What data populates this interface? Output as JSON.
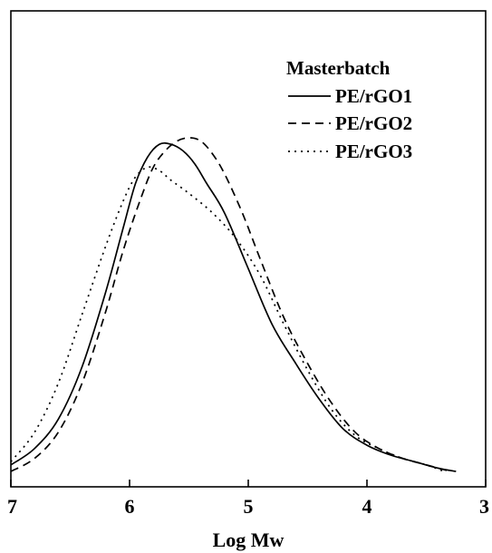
{
  "chart_data": {
    "type": "line",
    "title": "",
    "xlabel": "Log Mw",
    "ylabel": "",
    "x_reversed": true,
    "xlim": [
      7,
      3
    ],
    "ylim": [
      0,
      1.1
    ],
    "x_ticks": [
      7,
      6,
      5,
      4,
      3
    ],
    "x_tick_labels": [
      "7",
      "6",
      "5",
      "4",
      "3"
    ],
    "y_ticks_shown": false,
    "grid": false,
    "legend": {
      "title": "Masterbatch",
      "placement": "top-right"
    },
    "series": [
      {
        "name": "PE/rGO1",
        "line_style": "solid",
        "color": "#000000",
        "x": [
          7.0,
          6.8,
          6.6,
          6.4,
          6.2,
          6.05,
          5.95,
          5.85,
          5.75,
          5.65,
          5.55,
          5.45,
          5.35,
          5.2,
          5.0,
          4.8,
          4.6,
          4.4,
          4.2,
          4.0,
          3.8,
          3.6,
          3.4,
          3.25
        ],
        "y": [
          0.02,
          0.07,
          0.16,
          0.32,
          0.55,
          0.75,
          0.88,
          0.96,
          1.0,
          1.0,
          0.98,
          0.94,
          0.88,
          0.79,
          0.62,
          0.45,
          0.33,
          0.22,
          0.13,
          0.08,
          0.05,
          0.03,
          0.01,
          0.0
        ]
      },
      {
        "name": "PE/rGO2",
        "line_style": "dashed",
        "color": "#000000",
        "x": [
          7.0,
          6.8,
          6.6,
          6.4,
          6.2,
          6.05,
          5.9,
          5.8,
          5.7,
          5.6,
          5.5,
          5.4,
          5.3,
          5.2,
          5.05,
          4.9,
          4.7,
          4.5,
          4.3,
          4.1,
          3.9,
          3.7,
          3.5,
          3.3
        ],
        "y": [
          0.0,
          0.04,
          0.12,
          0.27,
          0.49,
          0.68,
          0.84,
          0.93,
          0.98,
          1.01,
          1.02,
          1.01,
          0.97,
          0.91,
          0.79,
          0.65,
          0.47,
          0.33,
          0.21,
          0.12,
          0.07,
          0.04,
          0.02,
          0.0
        ]
      },
      {
        "name": "PE/rGO3",
        "line_style": "dotted",
        "color": "#000000",
        "x": [
          7.0,
          6.8,
          6.6,
          6.4,
          6.2,
          6.05,
          5.95,
          5.85,
          5.75,
          5.65,
          5.5,
          5.3,
          5.1,
          4.9,
          4.7,
          4.5,
          4.3,
          4.1,
          3.9,
          3.7,
          3.5,
          3.35
        ],
        "y": [
          0.03,
          0.12,
          0.27,
          0.48,
          0.69,
          0.83,
          0.9,
          0.93,
          0.92,
          0.89,
          0.85,
          0.79,
          0.71,
          0.6,
          0.45,
          0.31,
          0.19,
          0.11,
          0.07,
          0.04,
          0.02,
          0.0
        ]
      }
    ]
  }
}
